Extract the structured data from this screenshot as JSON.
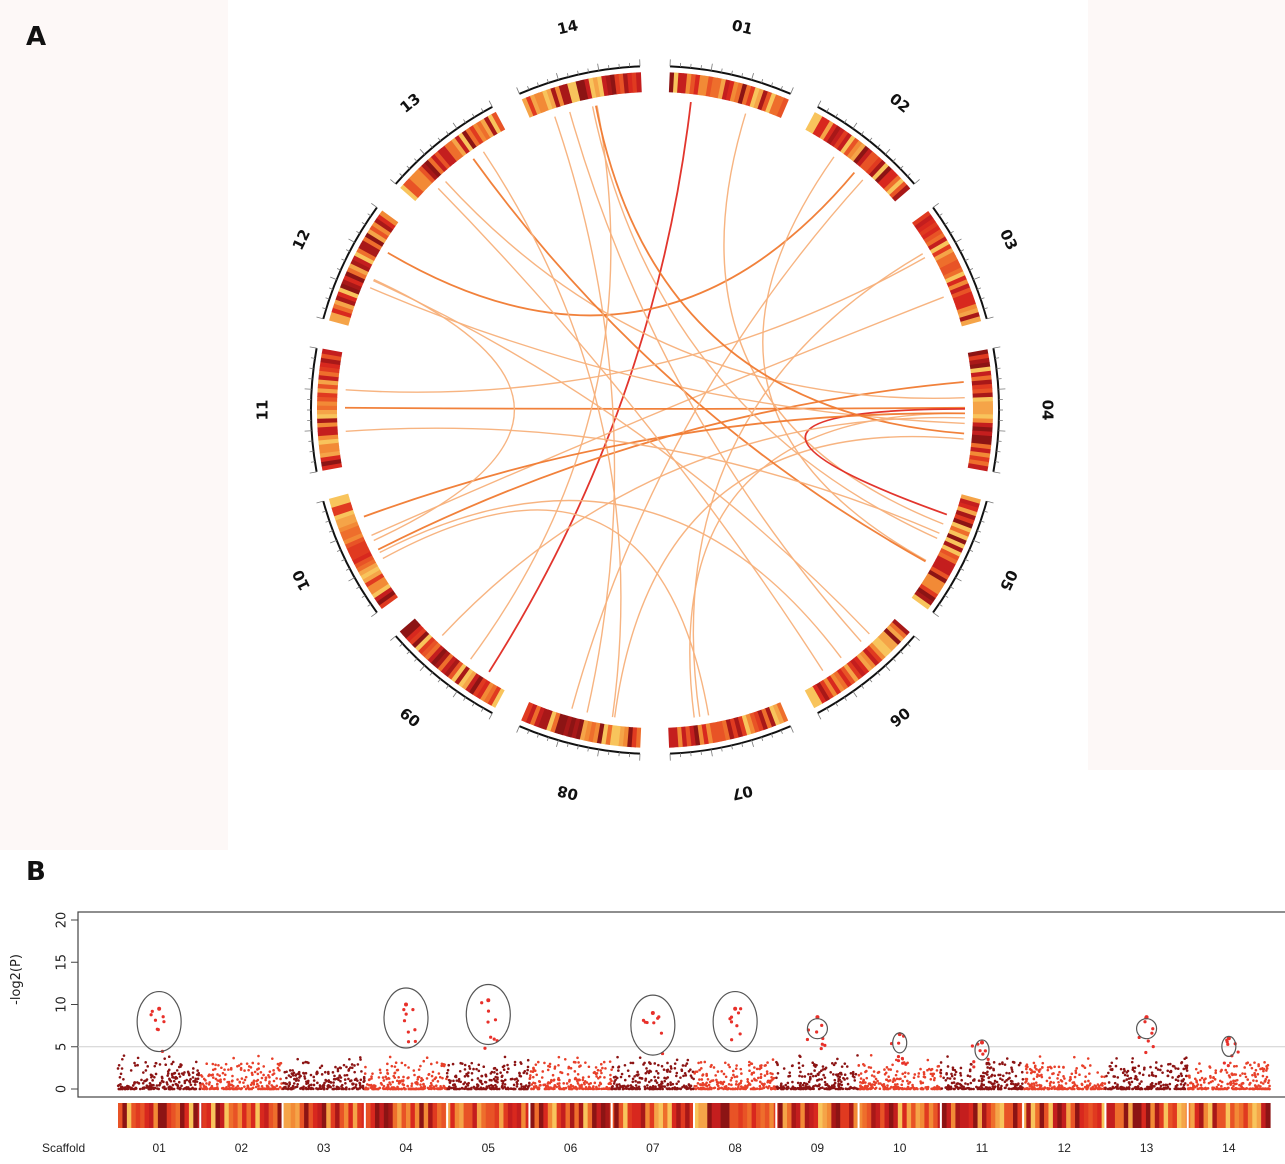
{
  "panels": {
    "a_label": "A",
    "b_label": "B"
  },
  "chart_data": [
    {
      "type": "chord",
      "chromosomes": [
        "01",
        "02",
        "03",
        "04",
        "05",
        "06",
        "07",
        "08",
        "09",
        "10",
        "11",
        "12",
        "13",
        "14"
      ],
      "colors": {
        "dark": "#8c1414",
        "red": "#e02a22",
        "orange": "#f07a30",
        "light_orange": "#f7b07a",
        "yellow": "#f8e07a"
      },
      "links": [
        {
          "from": "01",
          "to": "09",
          "color": "red"
        },
        {
          "from": "02",
          "to": "12",
          "color": "orange"
        },
        {
          "from": "02",
          "to": "05",
          "color": "light_orange"
        },
        {
          "from": "03",
          "to": "10",
          "color": "light_orange"
        },
        {
          "from": "04",
          "to": "11",
          "color": "orange"
        },
        {
          "from": "04",
          "to": "10",
          "color": "orange"
        },
        {
          "from": "04",
          "to": "12",
          "color": "light_orange"
        },
        {
          "from": "04",
          "to": "13",
          "color": "light_orange"
        },
        {
          "from": "04",
          "to": "08",
          "color": "light_orange"
        },
        {
          "from": "04",
          "to": "07",
          "color": "light_orange"
        },
        {
          "from": "05",
          "to": "01",
          "color": "light_orange"
        },
        {
          "from": "05",
          "to": "13",
          "color": "orange"
        },
        {
          "from": "05",
          "to": "14",
          "color": "light_orange"
        },
        {
          "from": "05",
          "to": "04",
          "color": "red"
        },
        {
          "from": "06",
          "to": "10",
          "color": "light_orange"
        },
        {
          "from": "06",
          "to": "14",
          "color": "light_orange"
        },
        {
          "from": "07",
          "to": "03",
          "color": "light_orange"
        },
        {
          "from": "08",
          "to": "14",
          "color": "light_orange"
        },
        {
          "from": "08",
          "to": "13",
          "color": "light_orange"
        },
        {
          "from": "08",
          "to": "02",
          "color": "light_orange"
        },
        {
          "from": "09",
          "to": "14",
          "color": "light_orange"
        },
        {
          "from": "10",
          "to": "04",
          "color": "orange"
        },
        {
          "from": "10",
          "to": "12",
          "color": "light_orange"
        },
        {
          "from": "11",
          "to": "05",
          "color": "light_orange"
        },
        {
          "from": "11",
          "to": "03",
          "color": "light_orange"
        },
        {
          "from": "12",
          "to": "06",
          "color": "light_orange"
        },
        {
          "from": "13",
          "to": "06",
          "color": "light_orange"
        },
        {
          "from": "14",
          "to": "04",
          "color": "orange"
        },
        {
          "from": "10",
          "to": "07",
          "color": "light_orange"
        },
        {
          "from": "09",
          "to": "04",
          "color": "light_orange"
        }
      ]
    },
    {
      "type": "scatter",
      "title": "",
      "xlabel": "Scaffold",
      "ylabel": "-log2(P)",
      "ylim": [
        0,
        20
      ],
      "yticks": [
        0,
        5,
        10,
        15,
        20
      ],
      "threshold": 5,
      "scaffolds": [
        "01",
        "02",
        "03",
        "04",
        "05",
        "06",
        "07",
        "08",
        "09",
        "10",
        "11",
        "12",
        "13",
        "14"
      ],
      "series_colors": [
        "#8c1414",
        "#e8402a"
      ],
      "highlighted_peaks": [
        {
          "scaffold": "01",
          "max_value": 9.5
        },
        {
          "scaffold": "04",
          "max_value": 10
        },
        {
          "scaffold": "05",
          "max_value": 10.5
        },
        {
          "scaffold": "07",
          "max_value": 9
        },
        {
          "scaffold": "08",
          "max_value": 9.5
        },
        {
          "scaffold": "09",
          "max_value": 8.5
        },
        {
          "scaffold": "10",
          "max_value": 6.5
        },
        {
          "scaffold": "11",
          "max_value": 5.5
        },
        {
          "scaffold": "13",
          "max_value": 8.5
        },
        {
          "scaffold": "14",
          "max_value": 6
        }
      ]
    }
  ]
}
